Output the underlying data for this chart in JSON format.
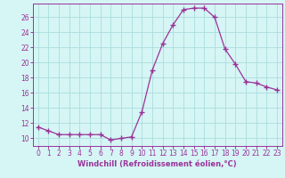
{
  "x": [
    0,
    1,
    2,
    3,
    4,
    5,
    6,
    7,
    8,
    9,
    10,
    11,
    12,
    13,
    14,
    15,
    16,
    17,
    18,
    19,
    20,
    21,
    22,
    23
  ],
  "y": [
    11.5,
    11.0,
    10.5,
    10.5,
    10.5,
    10.5,
    10.5,
    9.8,
    10.0,
    10.2,
    13.5,
    19.0,
    22.5,
    25.0,
    27.0,
    27.2,
    27.2,
    26.0,
    21.8,
    19.8,
    17.5,
    17.3,
    16.8,
    16.4
  ],
  "line_color": "#993399",
  "marker": "+",
  "marker_size": 4,
  "bg_color": "#d6f5f5",
  "grid_color": "#aadddd",
  "xlabel": "Windchill (Refroidissement éolien,°C)",
  "xlim": [
    -0.5,
    23.5
  ],
  "ylim": [
    9.0,
    27.8
  ],
  "yticks": [
    10,
    12,
    14,
    16,
    18,
    20,
    22,
    24,
    26
  ],
  "xticks": [
    0,
    1,
    2,
    3,
    4,
    5,
    6,
    7,
    8,
    9,
    10,
    11,
    12,
    13,
    14,
    15,
    16,
    17,
    18,
    19,
    20,
    21,
    22,
    23
  ],
  "label_fontsize": 6,
  "tick_fontsize": 5.5
}
